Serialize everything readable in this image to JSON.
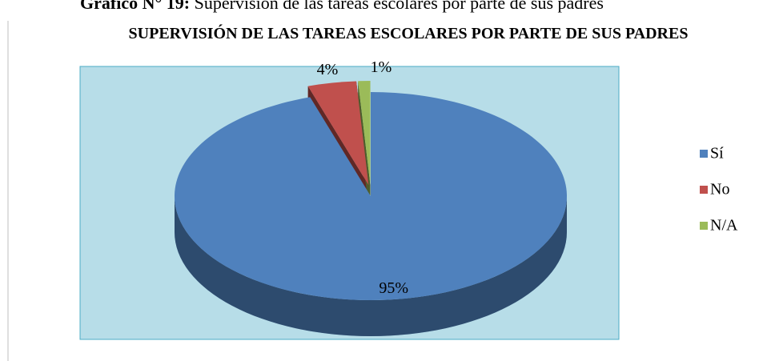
{
  "caption_label": "Gráfico N° 19:",
  "caption": "Supervisión de las tareas escolares por parte de sus padres",
  "chart_data": {
    "type": "pie3d",
    "title": "SUPERVISIÓN DE LAS TAREAS ESCOLARES POR PARTE DE SUS PADRES",
    "categories": [
      "Sí",
      "No",
      "N/A"
    ],
    "values": [
      95,
      4,
      1
    ],
    "value_labels": [
      "95%",
      "4%",
      "1%"
    ],
    "colors": [
      "#4f81bd",
      "#c0504d",
      "#9bbb59"
    ],
    "legend": "right"
  }
}
